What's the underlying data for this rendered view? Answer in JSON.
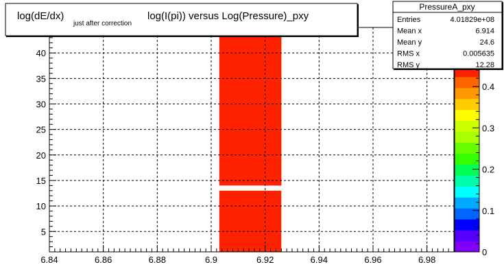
{
  "title": {
    "main": "log(dE/dx)",
    "subscript": "just after correction",
    "rest": "log(I(pi)) versus Log(Pressure)_pxy"
  },
  "stats": {
    "name": "PressureA_pxy",
    "rows": [
      {
        "label": "Entries",
        "value": "4.01829e+08"
      },
      {
        "label": "Mean x",
        "value": "6.914"
      },
      {
        "label": "Mean y",
        "value": "24.6"
      },
      {
        "label": "RMS x",
        "value": "0.005635"
      },
      {
        "label": "RMS y",
        "value": "12.28"
      }
    ]
  },
  "colors": {
    "palette": [
      "#7f00ff",
      "#5500ff",
      "#0000ff",
      "#0066ff",
      "#00aaff",
      "#00ffff",
      "#00ffaa",
      "#00ff55",
      "#33ff00",
      "#66ff00",
      "#aaff00",
      "#ccff00",
      "#ffff00",
      "#ffcc00",
      "#ff9900",
      "#ff6600",
      "#ff2200"
    ],
    "grid": "#000000",
    "frame": "#000000"
  },
  "chart_data": {
    "type": "heatmap",
    "x_ticks": [
      "6.84",
      "6.86",
      "6.88",
      "6.9",
      "6.92",
      "6.94",
      "6.96",
      "6.98"
    ],
    "x_tick_values": [
      6.84,
      6.86,
      6.88,
      6.9,
      6.92,
      6.94,
      6.96,
      6.98
    ],
    "y_ticks": [
      "5",
      "10",
      "15",
      "20",
      "25",
      "30",
      "35",
      "40"
    ],
    "y_tick_values": [
      5,
      10,
      15,
      20,
      25,
      30,
      35,
      40
    ],
    "xlim": [
      6.84,
      6.99
    ],
    "ylim": [
      1,
      45
    ],
    "z_ticks": [
      "0",
      "0.1",
      "0.2",
      "0.3",
      "0.4"
    ],
    "z_tick_values": [
      0,
      0.1,
      0.2,
      0.3,
      0.4
    ],
    "zlim": [
      0,
      0.45
    ],
    "grid": true,
    "regions": [
      {
        "x": [
          6.903,
          6.926
        ],
        "y": [
          14,
          45
        ],
        "z": 0.44
      },
      {
        "x": [
          6.903,
          6.926
        ],
        "y": [
          1,
          13
        ],
        "z": 0.45
      }
    ],
    "hot_regions": [
      {
        "x": [
          6.9035,
          6.924
        ],
        "y": [
          28,
          45
        ],
        "z": 0.45
      },
      {
        "x": [
          6.9235,
          6.926
        ],
        "y": [
          14,
          45
        ],
        "z": 0.45
      }
    ]
  }
}
